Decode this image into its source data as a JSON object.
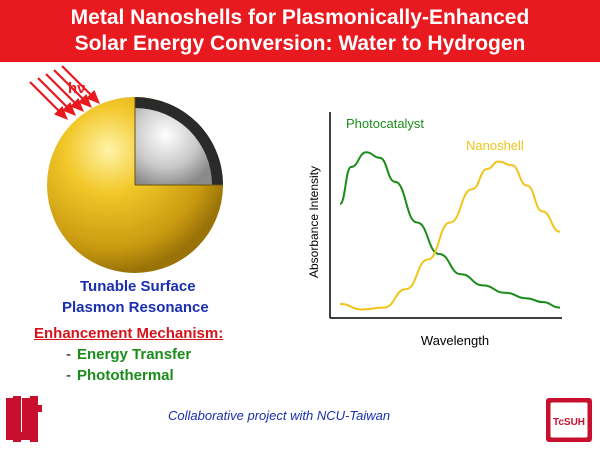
{
  "header": {
    "title_line1": "Metal Nanoshells for Plasmonically-Enhanced",
    "title_line2": "Solar Energy Conversion: Water to Hydrogen",
    "background": "#e8191f"
  },
  "illustration": {
    "light_label": "hν",
    "shell_color": "#e8b81a",
    "core_color": "#c8c8c8",
    "caption_line1": "Tunable Surface",
    "caption_line2": "Plasmon Resonance"
  },
  "mechanism": {
    "heading": "Enhancement Mechanism:",
    "items": [
      "Energy Transfer",
      "Photothermal"
    ]
  },
  "footer": {
    "collab_text": "Collaborative project with NCU-Taiwan",
    "logo_left": "UH",
    "logo_right": "TcSUH"
  },
  "chart_data": {
    "type": "line",
    "xlabel": "Wavelength",
    "ylabel": "Absorbance Intensity",
    "xlim": [
      0,
      100
    ],
    "ylim": [
      0,
      100
    ],
    "series": [
      {
        "name": "Photocatalyst",
        "color": "#1a8c1a",
        "x": [
          0,
          5,
          12,
          18,
          25,
          35,
          45,
          55,
          65,
          75,
          85,
          92,
          100
        ],
        "y": [
          60,
          80,
          88,
          85,
          72,
          50,
          33,
          22,
          16,
          12,
          9,
          7,
          4
        ]
      },
      {
        "name": "Nanoshell",
        "color": "#f0c419",
        "x": [
          0,
          10,
          20,
          30,
          40,
          50,
          60,
          67,
          72,
          78,
          85,
          92,
          100
        ],
        "y": [
          6,
          3,
          4,
          14,
          30,
          50,
          68,
          79,
          83,
          81,
          70,
          56,
          45
        ]
      }
    ]
  }
}
